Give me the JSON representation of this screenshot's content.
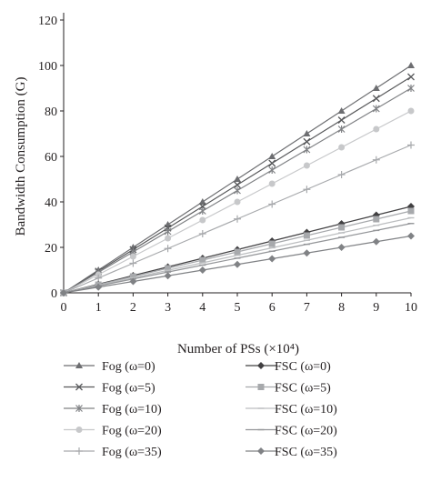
{
  "chart_data": {
    "type": "line",
    "title": "",
    "xlabel": "Number of PSs (×10⁴)",
    "ylabel": "Bandwidth Consumption (G)",
    "xlim": [
      0,
      10
    ],
    "ylim": [
      0,
      120
    ],
    "x": [
      0,
      1,
      2,
      3,
      4,
      5,
      6,
      7,
      8,
      9,
      10
    ],
    "x_ticks": [
      "0",
      "1",
      "2",
      "3",
      "4",
      "5",
      "6",
      "7",
      "8",
      "9",
      "10"
    ],
    "y_ticks": [
      "0",
      "20",
      "40",
      "60",
      "80",
      "100",
      "120"
    ],
    "grid": false,
    "legend_position": "bottom",
    "series": [
      {
        "name": "Fog (ω=0)",
        "marker": "triangle",
        "color": "#6d6e71",
        "values": [
          0,
          10,
          20,
          30,
          40,
          50,
          60,
          70,
          80,
          90,
          100
        ]
      },
      {
        "name": "Fog (ω=5)",
        "marker": "x",
        "color": "#58595b",
        "values": [
          0,
          9.5,
          19,
          28.5,
          38,
          47.5,
          57,
          66.5,
          76,
          85.5,
          95
        ]
      },
      {
        "name": "Fog (ω=10)",
        "marker": "asterisk",
        "color": "#808285",
        "values": [
          0,
          9,
          18,
          27,
          36,
          45,
          54,
          63,
          72,
          81,
          90
        ]
      },
      {
        "name": "Fog (ω=20)",
        "marker": "circle",
        "color": "#c7c8ca",
        "values": [
          0,
          8,
          16,
          24,
          32,
          40,
          48,
          56,
          64,
          72,
          80
        ]
      },
      {
        "name": "Fog (ω=35)",
        "marker": "plus",
        "color": "#a7a9ac",
        "values": [
          0,
          6.5,
          13,
          19.5,
          26,
          32.5,
          39,
          45.5,
          52,
          58.5,
          65
        ]
      },
      {
        "name": "FSC (ω=0)",
        "marker": "diamond",
        "color": "#414042",
        "values": [
          0,
          3.8,
          7.6,
          11.4,
          15.2,
          19,
          22.8,
          26.6,
          30.4,
          34.2,
          38
        ]
      },
      {
        "name": "FSC (ω=5)",
        "marker": "square",
        "color": "#a7a9ac",
        "values": [
          0,
          3.6,
          7.2,
          10.8,
          14.4,
          18,
          21.6,
          25.2,
          28.8,
          32.4,
          36
        ]
      },
      {
        "name": "FSC (ω=10)",
        "marker": "dash",
        "color": "#bcbec0",
        "values": [
          0,
          3.3,
          6.6,
          9.9,
          13.2,
          16.5,
          19.8,
          23.1,
          26.4,
          29.7,
          33
        ]
      },
      {
        "name": "FSC (ω=20)",
        "marker": "dash",
        "color": "#939598",
        "values": [
          0,
          3.05,
          6.1,
          9.15,
          12.2,
          15.25,
          18.3,
          21.35,
          24.4,
          27.45,
          30.5
        ]
      },
      {
        "name": "FSC (ω=35)",
        "marker": "diamond",
        "color": "#808285",
        "values": [
          0,
          2.5,
          5,
          7.5,
          10,
          12.5,
          15,
          17.5,
          20,
          22.5,
          25
        ]
      }
    ]
  }
}
